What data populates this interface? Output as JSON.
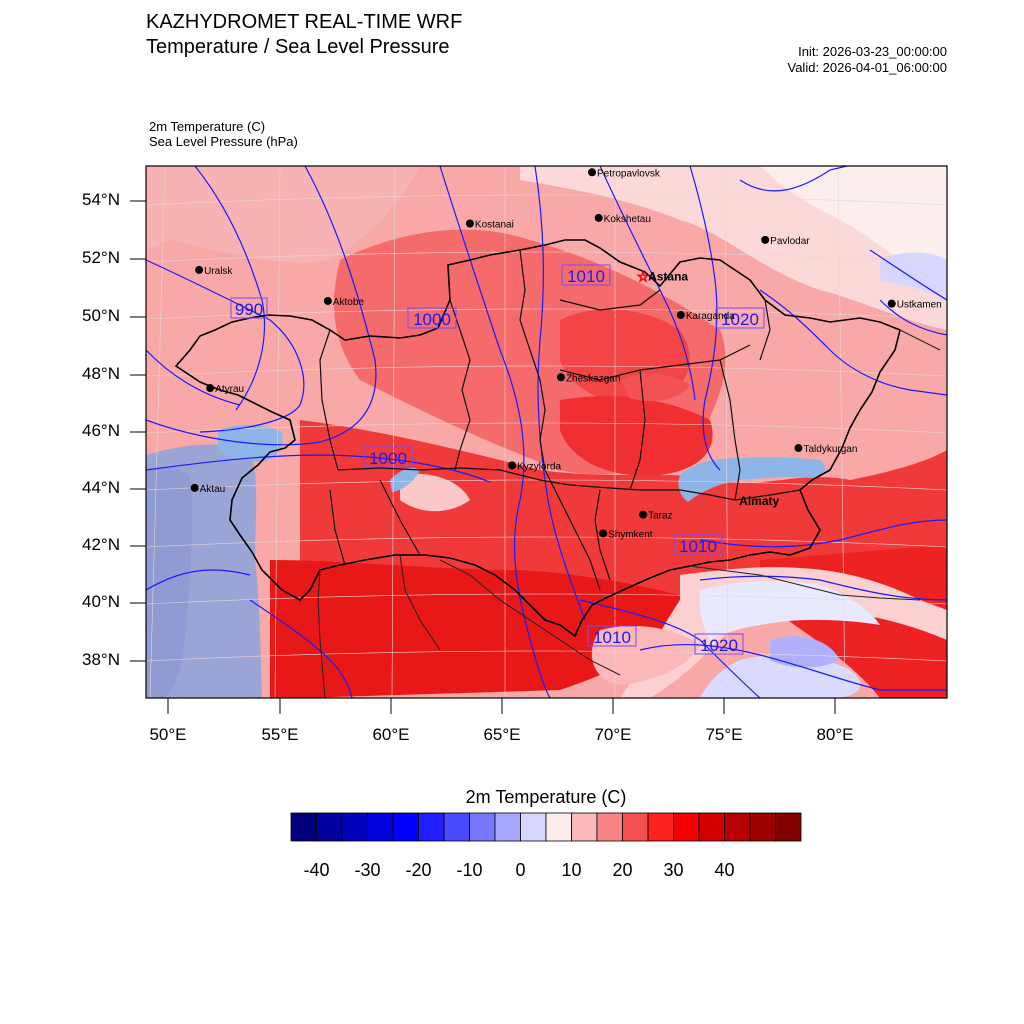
{
  "header": {
    "title": "KAZHYDROMET REAL-TIME WRF",
    "subtitle": "Temperature / Sea Level Pressure",
    "init": "Init: 2026-03-23_00:00:00",
    "valid": "Valid: 2026-04-01_06:00:00",
    "var_temp": "2m Temperature   (C)",
    "var_slp": "Sea Level Pressure   (hPa)"
  },
  "map": {
    "lat_labels": [
      "54°N",
      "52°N",
      "50°N",
      "48°N",
      "46°N",
      "44°N",
      "42°N",
      "40°N",
      "38°N"
    ],
    "lon_labels": [
      "50°E",
      "55°E",
      "60°E",
      "65°E",
      "70°E",
      "75°E",
      "80°E"
    ],
    "cities": [
      {
        "name": "Petropavlovsk",
        "lon": 69.1,
        "lat": 54.9
      },
      {
        "name": "Kostanai",
        "lon": 63.6,
        "lat": 53.2
      },
      {
        "name": "Kokshetau",
        "lon": 69.4,
        "lat": 53.3
      },
      {
        "name": "Pavlodar",
        "lon": 76.9,
        "lat": 52.3
      },
      {
        "name": "Uralsk",
        "lon": 51.4,
        "lat": 51.2
      },
      {
        "name": "Aktobe",
        "lon": 57.2,
        "lat": 50.3
      },
      {
        "name": "Astana",
        "lon": 71.4,
        "lat": 51.2,
        "capital": true
      },
      {
        "name": "Ustkamen",
        "lon": 82.6,
        "lat": 49.9
      },
      {
        "name": "Karaganda",
        "lon": 73.1,
        "lat": 49.8
      },
      {
        "name": "Atyrau",
        "lon": 51.9,
        "lat": 47.1
      },
      {
        "name": "Zheskazgan",
        "lon": 67.7,
        "lat": 47.8
      },
      {
        "name": "Aktau",
        "lon": 51.2,
        "lat": 43.6
      },
      {
        "name": "Kyzylorda",
        "lon": 65.5,
        "lat": 44.8
      },
      {
        "name": "Taldykurgan",
        "lon": 78.4,
        "lat": 45.0
      },
      {
        "name": "Almaty",
        "lon": 76.9,
        "lat": 43.2,
        "bold": true
      },
      {
        "name": "Taraz",
        "lon": 71.4,
        "lat": 42.9
      },
      {
        "name": "Shymkent",
        "lon": 69.6,
        "lat": 42.3
      }
    ],
    "isobar_labels": [
      {
        "text": "990"
      },
      {
        "text": "1000"
      },
      {
        "text": "1010"
      },
      {
        "text": "1020"
      },
      {
        "text": "1000"
      },
      {
        "text": "1010"
      },
      {
        "text": "1010"
      },
      {
        "text": "1020"
      }
    ]
  },
  "colorbar": {
    "title": "2m Temperature  (C)",
    "colors": [
      "#00007f",
      "#00009f",
      "#0000bf",
      "#0000df",
      "#0000ff",
      "#1f1fff",
      "#4a4aff",
      "#7878ff",
      "#a6a6ff",
      "#d6d6ff",
      "#fdecec",
      "#fbb8b8",
      "#f88585",
      "#f45252",
      "#ff2020",
      "#f00000",
      "#d40000",
      "#b80000",
      "#9c0000",
      "#800000"
    ],
    "ticks": [
      "-40",
      "-30",
      "-20",
      "-10",
      "0",
      "10",
      "20",
      "30",
      "40"
    ]
  },
  "colors": {
    "isobar": "#1a1aff",
    "border": "#000000",
    "water": "#9aa5d6"
  }
}
